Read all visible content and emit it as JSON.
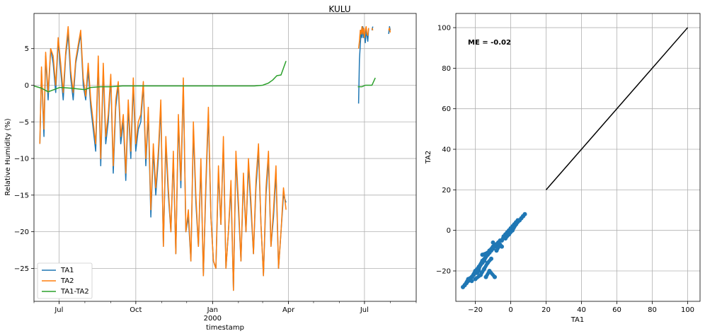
{
  "title": "KULU",
  "colors": {
    "ta1": "#1f77b4",
    "ta2": "#ff7f0e",
    "diff": "#2ca02c",
    "line": "#000000"
  },
  "chart_data": [
    {
      "type": "line",
      "xlabel": "timestamp",
      "ylabel": "Relative Humidity (%)",
      "ylim": [
        -29.5,
        9.8
      ],
      "xlim": [
        "1999-06-01",
        "2000-09-01"
      ],
      "x_ticks": [
        {
          "date": "1999-07-01",
          "label": "Jul",
          "sub": ""
        },
        {
          "date": "1999-10-01",
          "label": "Oct",
          "sub": ""
        },
        {
          "date": "2000-01-01",
          "label": "Jan",
          "sub": "2000"
        },
        {
          "date": "2000-04-01",
          "label": "Apr",
          "sub": ""
        },
        {
          "date": "2000-07-01",
          "label": "Jul",
          "sub": ""
        }
      ],
      "y_ticks": [
        5,
        0,
        -5,
        -10,
        -15,
        -20,
        -25
      ],
      "legend_position": "lower-left",
      "grid": true,
      "series": [
        {
          "name": "TA1",
          "segments": [
            {
              "x": [
                "1999-06-08",
                "1999-06-10",
                "1999-06-13",
                "1999-06-15",
                "1999-06-18",
                "1999-06-21",
                "1999-06-24",
                "1999-06-27",
                "1999-06-30",
                "1999-07-03",
                "1999-07-06",
                "1999-07-09",
                "1999-07-12",
                "1999-07-15",
                "1999-07-18",
                "1999-07-21",
                "1999-07-24",
                "1999-07-27",
                "1999-07-30",
                "1999-08-02",
                "1999-08-05",
                "1999-08-08",
                "1999-08-11",
                "1999-08-14",
                "1999-08-17",
                "1999-08-20",
                "1999-08-23",
                "1999-08-26",
                "1999-08-29",
                "1999-09-01",
                "1999-09-04",
                "1999-09-07",
                "1999-09-10",
                "1999-09-13",
                "1999-09-16",
                "1999-09-19",
                "1999-09-22",
                "1999-09-25",
                "1999-09-28",
                "1999-10-01",
                "1999-10-04",
                "1999-10-07",
                "1999-10-10",
                "1999-10-13",
                "1999-10-16",
                "1999-10-19",
                "1999-10-22",
                "1999-10-25",
                "1999-10-28",
                "1999-10-31",
                "1999-11-03",
                "1999-11-06",
                "1999-11-09",
                "1999-11-12",
                "1999-11-15",
                "1999-11-18",
                "1999-11-21",
                "1999-11-24",
                "1999-11-27",
                "1999-11-30",
                "1999-12-03",
                "1999-12-06",
                "1999-12-09",
                "1999-12-12",
                "1999-12-15",
                "1999-12-18",
                "1999-12-21",
                "1999-12-24",
                "1999-12-27",
                "1999-12-30",
                "2000-01-02",
                "2000-01-05",
                "2000-01-08",
                "2000-01-11",
                "2000-01-14",
                "2000-01-17",
                "2000-01-20",
                "2000-01-23",
                "2000-01-26",
                "2000-01-29",
                "2000-02-01",
                "2000-02-04",
                "2000-02-07",
                "2000-02-10",
                "2000-02-13",
                "2000-02-16",
                "2000-02-19",
                "2000-02-22",
                "2000-02-25",
                "2000-02-28",
                "2000-03-02",
                "2000-03-05",
                "2000-03-08",
                "2000-03-11",
                "2000-03-14",
                "2000-03-17",
                "2000-03-20",
                "2000-03-23",
                "2000-03-26",
                "2000-03-29"
              ],
              "y": [
                -8,
                2,
                -7,
                4,
                -2,
                5,
                3,
                -1,
                6,
                2,
                -2,
                4,
                7,
                1,
                -2,
                3,
                5,
                7,
                0,
                -2,
                2,
                -3,
                -6,
                -9,
                3,
                -11,
                2,
                -8,
                -5,
                1,
                -12,
                -3,
                0,
                -8,
                -5,
                -13,
                -3,
                -10,
                0,
                -9,
                -6,
                -5,
                0,
                -11,
                -4,
                -18,
                -9,
                -15,
                -10,
                -3,
                -22,
                -8,
                -15,
                -20,
                -10,
                -23,
                -5,
                -14,
                0,
                -20,
                -18,
                -24,
                -6,
                -16,
                -22,
                -11,
                -26,
                -14,
                -4,
                -18,
                -24,
                -25,
                -12,
                -19,
                -8,
                -25,
                -20,
                -14,
                -28,
                -10,
                -17,
                -24,
                -13,
                -20,
                -11,
                -17,
                -23,
                -14,
                -9,
                -19,
                -26,
                -15,
                -10,
                -22,
                -18,
                -12,
                -25,
                -20,
                -15,
                -16
              ]
            },
            {
              "x": [
                "2000-06-24",
                "2000-06-25",
                "2000-06-26",
                "2000-06-27",
                "2000-06-28",
                "2000-06-29",
                "2000-06-30",
                "2000-07-01",
                "2000-07-02",
                "2000-07-03",
                "2000-07-04",
                "2000-07-05",
                "2000-07-06"
              ],
              "y": [
                -2.5,
                3.5,
                5.5,
                7.5,
                6.5,
                8,
                6.5,
                7,
                5.8,
                7.5,
                6.8,
                6,
                7.8
              ]
            },
            {
              "x": [
                "2000-07-10",
                "2000-07-11"
              ],
              "y": [
                7.5,
                8
              ]
            },
            {
              "x": [
                "2000-07-30",
                "2000-07-31",
                "2000-08-01"
              ],
              "y": [
                7,
                8,
                7.5
              ]
            }
          ]
        },
        {
          "name": "TA2",
          "segments": [
            {
              "x": [
                "1999-06-08",
                "1999-06-10",
                "1999-06-13",
                "1999-06-15",
                "1999-06-18",
                "1999-06-21",
                "1999-06-24",
                "1999-06-27",
                "1999-06-30",
                "1999-07-03",
                "1999-07-06",
                "1999-07-09",
                "1999-07-12",
                "1999-07-15",
                "1999-07-18",
                "1999-07-21",
                "1999-07-24",
                "1999-07-27",
                "1999-07-30",
                "1999-08-02",
                "1999-08-05",
                "1999-08-08",
                "1999-08-11",
                "1999-08-14",
                "1999-08-17",
                "1999-08-20",
                "1999-08-23",
                "1999-08-26",
                "1999-08-29",
                "1999-09-01",
                "1999-09-04",
                "1999-09-07",
                "1999-09-10",
                "1999-09-13",
                "1999-09-16",
                "1999-09-19",
                "1999-09-22",
                "1999-09-25",
                "1999-09-28",
                "1999-10-01",
                "1999-10-04",
                "1999-10-07",
                "1999-10-10",
                "1999-10-13",
                "1999-10-16",
                "1999-10-19",
                "1999-10-22",
                "1999-10-25",
                "1999-10-28",
                "1999-10-31",
                "1999-11-03",
                "1999-11-06",
                "1999-11-09",
                "1999-11-12",
                "1999-11-15",
                "1999-11-18",
                "1999-11-21",
                "1999-11-24",
                "1999-11-27",
                "1999-11-30",
                "1999-12-03",
                "1999-12-06",
                "1999-12-09",
                "1999-12-12",
                "1999-12-15",
                "1999-12-18",
                "1999-12-21",
                "1999-12-24",
                "1999-12-27",
                "1999-12-30",
                "2000-01-02",
                "2000-01-05",
                "2000-01-08",
                "2000-01-11",
                "2000-01-14",
                "2000-01-17",
                "2000-01-20",
                "2000-01-23",
                "2000-01-26",
                "2000-01-29",
                "2000-02-01",
                "2000-02-04",
                "2000-02-07",
                "2000-02-10",
                "2000-02-13",
                "2000-02-16",
                "2000-02-19",
                "2000-02-22",
                "2000-02-25",
                "2000-02-28",
                "2000-03-02",
                "2000-03-05",
                "2000-03-08",
                "2000-03-11",
                "2000-03-14",
                "2000-03-17",
                "2000-03-20",
                "2000-03-23",
                "2000-03-26",
                "2000-03-29"
              ],
              "y": [
                -8,
                2.5,
                -6,
                4.5,
                -1,
                5,
                4,
                0,
                6.5,
                3,
                -1,
                4.5,
                8,
                2,
                -1,
                3.5,
                5.5,
                7.5,
                1,
                -1.5,
                3,
                -2,
                -5,
                -8,
                4,
                -10,
                3,
                -7,
                -4,
                1.5,
                -11,
                -2,
                0.5,
                -7,
                -4,
                -12,
                -2,
                -9,
                1,
                -8,
                -5,
                -4,
                0.5,
                -10,
                -3,
                -17,
                -8,
                -14,
                -9,
                -2,
                -22,
                -7,
                -14,
                -20,
                -9,
                -23,
                -4,
                -13,
                1,
                -20,
                -17,
                -24,
                -5,
                -15,
                -22,
                -10,
                -26,
                -13,
                -3,
                -18,
                -24,
                -25,
                -11,
                -19,
                -7,
                -25,
                -20,
                -13,
                -28,
                -9,
                -16,
                -24,
                -12,
                -20,
                -10,
                -16,
                -23,
                -13,
                -8,
                -19,
                -26,
                -14,
                -9,
                -22,
                -17,
                -11,
                -25,
                -20,
                -14,
                -17
              ]
            },
            {
              "x": [
                "2000-06-24",
                "2000-06-25",
                "2000-06-26",
                "2000-06-27",
                "2000-06-28",
                "2000-06-29",
                "2000-06-30",
                "2000-07-01",
                "2000-07-02",
                "2000-07-03",
                "2000-07-04",
                "2000-07-05",
                "2000-07-06"
              ],
              "y": [
                5,
                6,
                7.5,
                7,
                8,
                7,
                7.8,
                6.5,
                7.5,
                8,
                7,
                6.8,
                7.8
              ]
            },
            {
              "x": [
                "2000-07-10",
                "2000-07-11"
              ],
              "y": [
                7.8,
                7.5
              ]
            },
            {
              "x": [
                "2000-07-30",
                "2000-07-31",
                "2000-08-01"
              ],
              "y": [
                7.5,
                7.8,
                7.2
              ]
            }
          ]
        },
        {
          "name": "TA1-TA2",
          "segments": [
            {
              "x": [
                "1999-06-01",
                "1999-06-10",
                "1999-06-18",
                "1999-06-25",
                "1999-07-02",
                "1999-07-15",
                "1999-08-01",
                "1999-08-08",
                "1999-08-20",
                "1999-09-01",
                "1999-09-15",
                "1999-10-01",
                "1999-11-01",
                "1999-12-01",
                "2000-01-01",
                "2000-02-01",
                "2000-02-20",
                "2000-03-01",
                "2000-03-08",
                "2000-03-13",
                "2000-03-18",
                "2000-03-23",
                "2000-03-29"
              ],
              "y": [
                -0.1,
                -0.4,
                -0.9,
                -0.6,
                -0.3,
                -0.4,
                -0.6,
                -0.3,
                -0.2,
                -0.2,
                -0.1,
                -0.1,
                -0.1,
                -0.1,
                -0.1,
                -0.1,
                -0.1,
                0,
                0.3,
                0.7,
                1.3,
                1.4,
                3.3
              ]
            },
            {
              "x": [
                "2000-06-23",
                "2000-06-28",
                "2000-07-02",
                "2000-07-06",
                "2000-07-10",
                "2000-07-14"
              ],
              "y": [
                -0.2,
                -0.2,
                0,
                0,
                0,
                1
              ]
            }
          ]
        }
      ]
    },
    {
      "type": "scatter",
      "xlabel": "TA1",
      "ylabel": "TA2",
      "xlim": [
        -31,
        107
      ],
      "ylim": [
        -35,
        107
      ],
      "x_ticks": [
        -20,
        0,
        20,
        40,
        60,
        80,
        100
      ],
      "y_ticks": [
        100,
        80,
        60,
        40,
        20,
        0,
        -20
      ],
      "grid": true,
      "annotation": "ME = -0.02",
      "reference_line": {
        "x": [
          20,
          100
        ],
        "y": [
          20,
          100
        ]
      },
      "points": {
        "x": [
          -27,
          -26,
          -25,
          -24,
          -23,
          -22,
          -21,
          -20,
          -19,
          -18,
          -17,
          -16,
          -15,
          -14,
          -13,
          -12,
          -11,
          -10,
          -9,
          -8,
          -7,
          -6,
          -5,
          -4,
          -3,
          -2,
          -1,
          0,
          1,
          2,
          3,
          4,
          5,
          6,
          7,
          8,
          -26,
          -24,
          -22,
          -20,
          -18,
          -16,
          -14,
          -12,
          -10,
          -20,
          -17,
          -15,
          -13,
          -11,
          -19,
          -14,
          -12,
          -9,
          -8,
          -6,
          -5,
          -3,
          -1,
          1,
          3,
          5,
          7,
          -22,
          -18,
          -16,
          -13,
          -10,
          -7
        ],
        "y": [
          -28,
          -27,
          -26,
          -25,
          -24,
          -23,
          -22,
          -21,
          -20,
          -19,
          -17,
          -16,
          -15,
          -13,
          -12,
          -11,
          -10,
          -9,
          -8,
          -7,
          -6,
          -5,
          -5,
          -3,
          -2,
          -1,
          0,
          1,
          2,
          3,
          4,
          5,
          5,
          6,
          7,
          8,
          -27,
          -24,
          -23,
          -20,
          -18,
          -15,
          -13,
          -10,
          -6,
          -24,
          -22,
          -19,
          -16,
          -14,
          -21,
          -23,
          -20,
          -23,
          -10,
          -7,
          -8,
          -4,
          -2,
          0,
          3,
          5,
          7,
          -25,
          -20,
          -12,
          -11,
          -8,
          -6
        ]
      }
    }
  ],
  "legend": [
    "TA1",
    "TA2",
    "TA1-TA2"
  ]
}
